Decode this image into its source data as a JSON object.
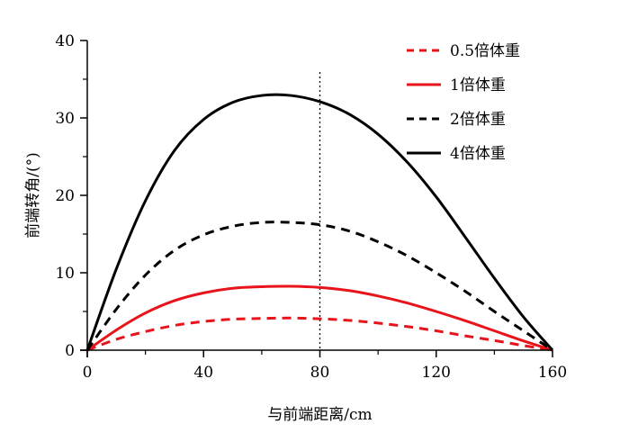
{
  "chart_data": {
    "type": "line",
    "xlabel": "与前端距离/cm",
    "ylabel": "前端转角/(°)",
    "xlim": [
      0,
      160
    ],
    "ylim": [
      0,
      40
    ],
    "xticks": [
      0,
      40,
      80,
      120,
      160
    ],
    "yticks": [
      0,
      10,
      20,
      30,
      40
    ],
    "grid": false,
    "legend_position": "top-right",
    "reference_line": {
      "x": 80,
      "style": "dotted",
      "color": "#000000"
    },
    "x": [
      0,
      10,
      20,
      30,
      40,
      50,
      60,
      70,
      80,
      90,
      100,
      110,
      120,
      130,
      140,
      150,
      160
    ],
    "series": [
      {
        "name": "0.5倍体重",
        "color": "#e8141b",
        "dash": "dashed",
        "values": [
          0,
          1.4,
          2.4,
          3.2,
          3.7,
          4.0,
          4.1,
          4.15,
          4.05,
          3.85,
          3.5,
          3.05,
          2.5,
          1.85,
          1.25,
          0.6,
          0
        ]
      },
      {
        "name": "1倍体重",
        "color": "#e8141b",
        "dash": "solid",
        "values": [
          0,
          2.6,
          4.8,
          6.4,
          7.4,
          8.0,
          8.2,
          8.25,
          8.1,
          7.7,
          7.0,
          6.1,
          5.0,
          3.8,
          2.5,
          1.2,
          0
        ]
      },
      {
        "name": "2倍体重",
        "color": "#000000",
        "dash": "dashed",
        "values": [
          0,
          5.3,
          9.7,
          12.9,
          14.9,
          16.0,
          16.5,
          16.5,
          16.2,
          15.4,
          14.0,
          12.2,
          10.0,
          7.6,
          5.0,
          2.5,
          0
        ]
      },
      {
        "name": "4倍体重",
        "color": "#000000",
        "dash": "solid",
        "values": [
          0,
          10.5,
          19.3,
          25.8,
          29.8,
          32.0,
          32.9,
          32.9,
          32.1,
          30.5,
          27.9,
          24.3,
          19.8,
          14.6,
          9.3,
          4.3,
          0
        ]
      }
    ]
  }
}
